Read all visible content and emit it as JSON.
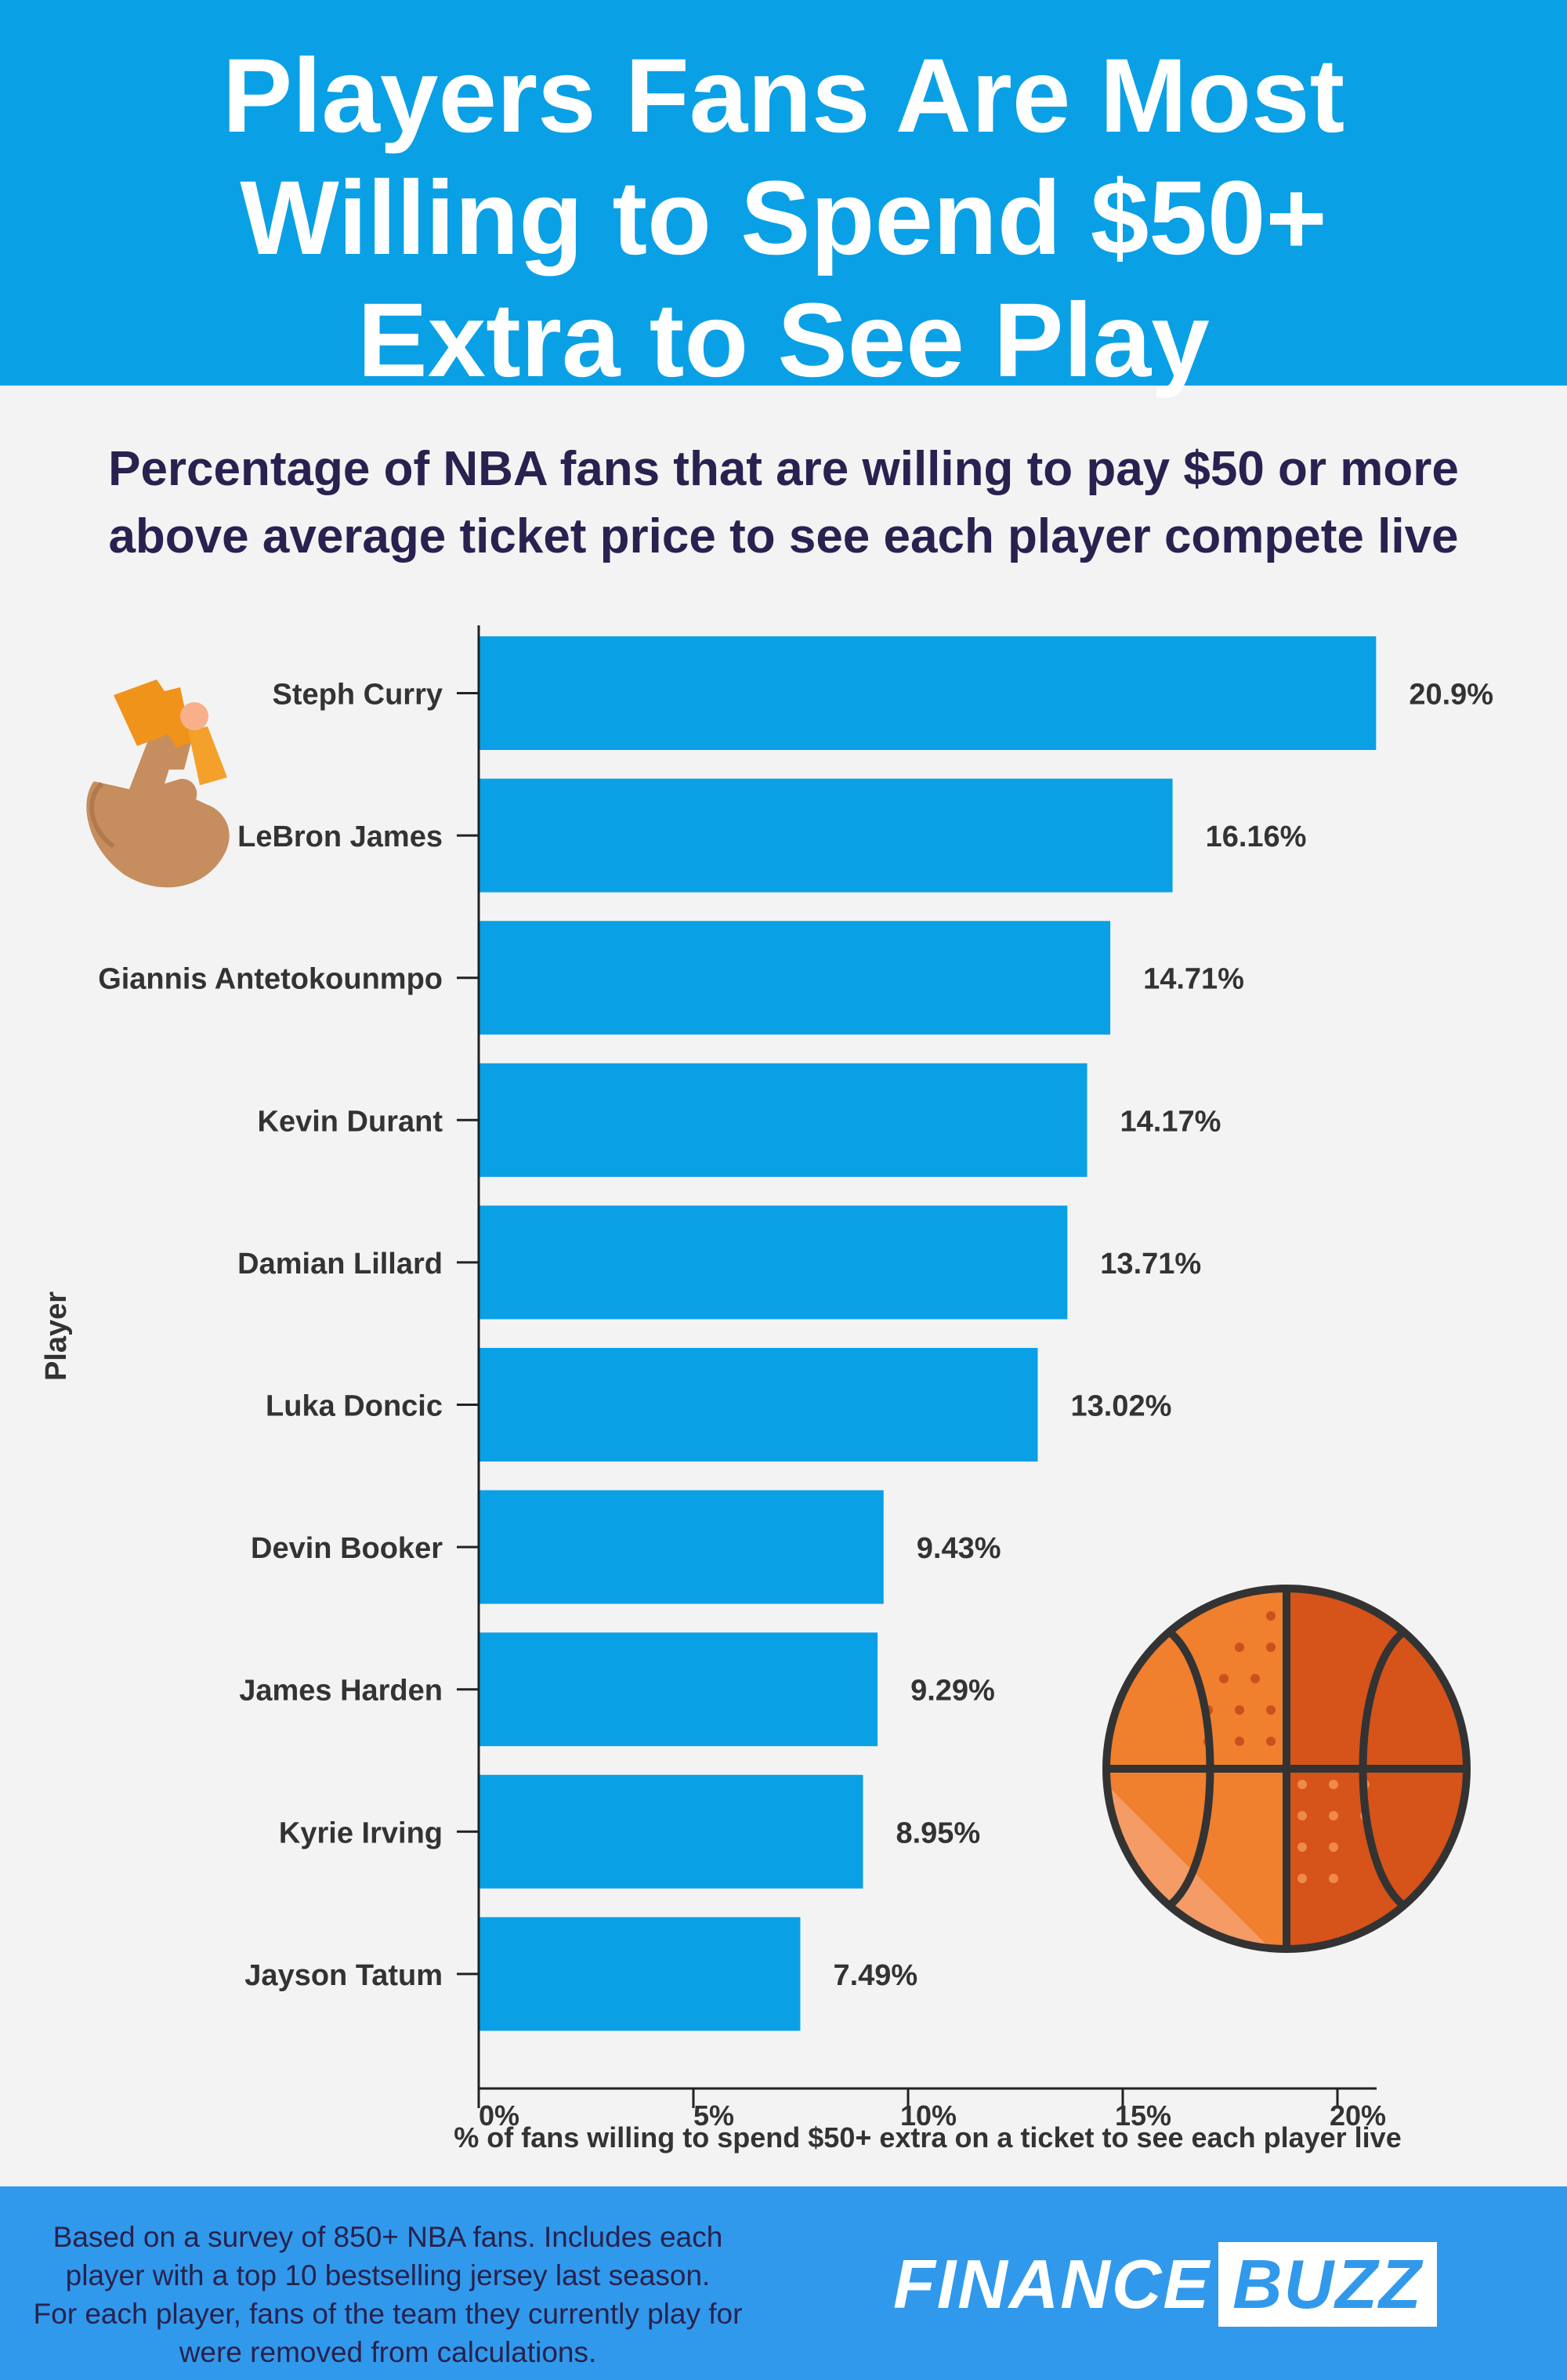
{
  "header": {
    "title": "Players Fans Are Most\nWilling to Spend $50+\nExtra to See Play"
  },
  "subtitle": "Percentage of NBA fans that are willing to pay $50 or more\nabove average ticket price to see each player compete live",
  "footer": {
    "note": "Based on a survey of 850+ NBA fans. Includes each\nplayer with a top 10 bestselling jersey last season.\nFor each player, fans of the team they currently play for\nwere removed from calculations.",
    "logo_left": "FINANCE",
    "logo_right": "BUZZ"
  },
  "colors": {
    "bar": "#0aa0e6",
    "header_bg": "#0aa0e6",
    "footer_bg": "#3099ec",
    "subtitle_text": "#2a2150",
    "label_text": "#333333",
    "background": "#f3f3f3"
  },
  "icons": [
    "hand-holding-ticket-icon",
    "basketball-icon"
  ],
  "chart_data": {
    "type": "bar",
    "orientation": "horizontal",
    "categories": [
      "Steph Curry",
      "LeBron James",
      "Giannis Antetokounmpo",
      "Kevin Durant",
      "Damian Lillard",
      "Luka Doncic",
      "Devin Booker",
      "James Harden",
      "Kyrie Irving",
      "Jayson Tatum"
    ],
    "values": [
      20.9,
      16.16,
      14.71,
      14.17,
      13.71,
      13.02,
      9.43,
      9.29,
      8.95,
      7.49
    ],
    "value_labels": [
      "20.9%",
      "16.16%",
      "14.71%",
      "14.17%",
      "13.71%",
      "13.02%",
      "9.43%",
      "9.29%",
      "8.95%",
      "7.49%"
    ],
    "xlabel": "% of fans willing to spend $50+ extra on a ticket to see each player live",
    "ylabel": "Player",
    "xlim": [
      0,
      21
    ],
    "xticks": [
      0,
      5,
      10,
      15,
      20
    ],
    "xtick_labels": [
      "0%",
      "5%",
      "10%",
      "15%",
      "20%"
    ],
    "grid": false,
    "legend": "none"
  }
}
